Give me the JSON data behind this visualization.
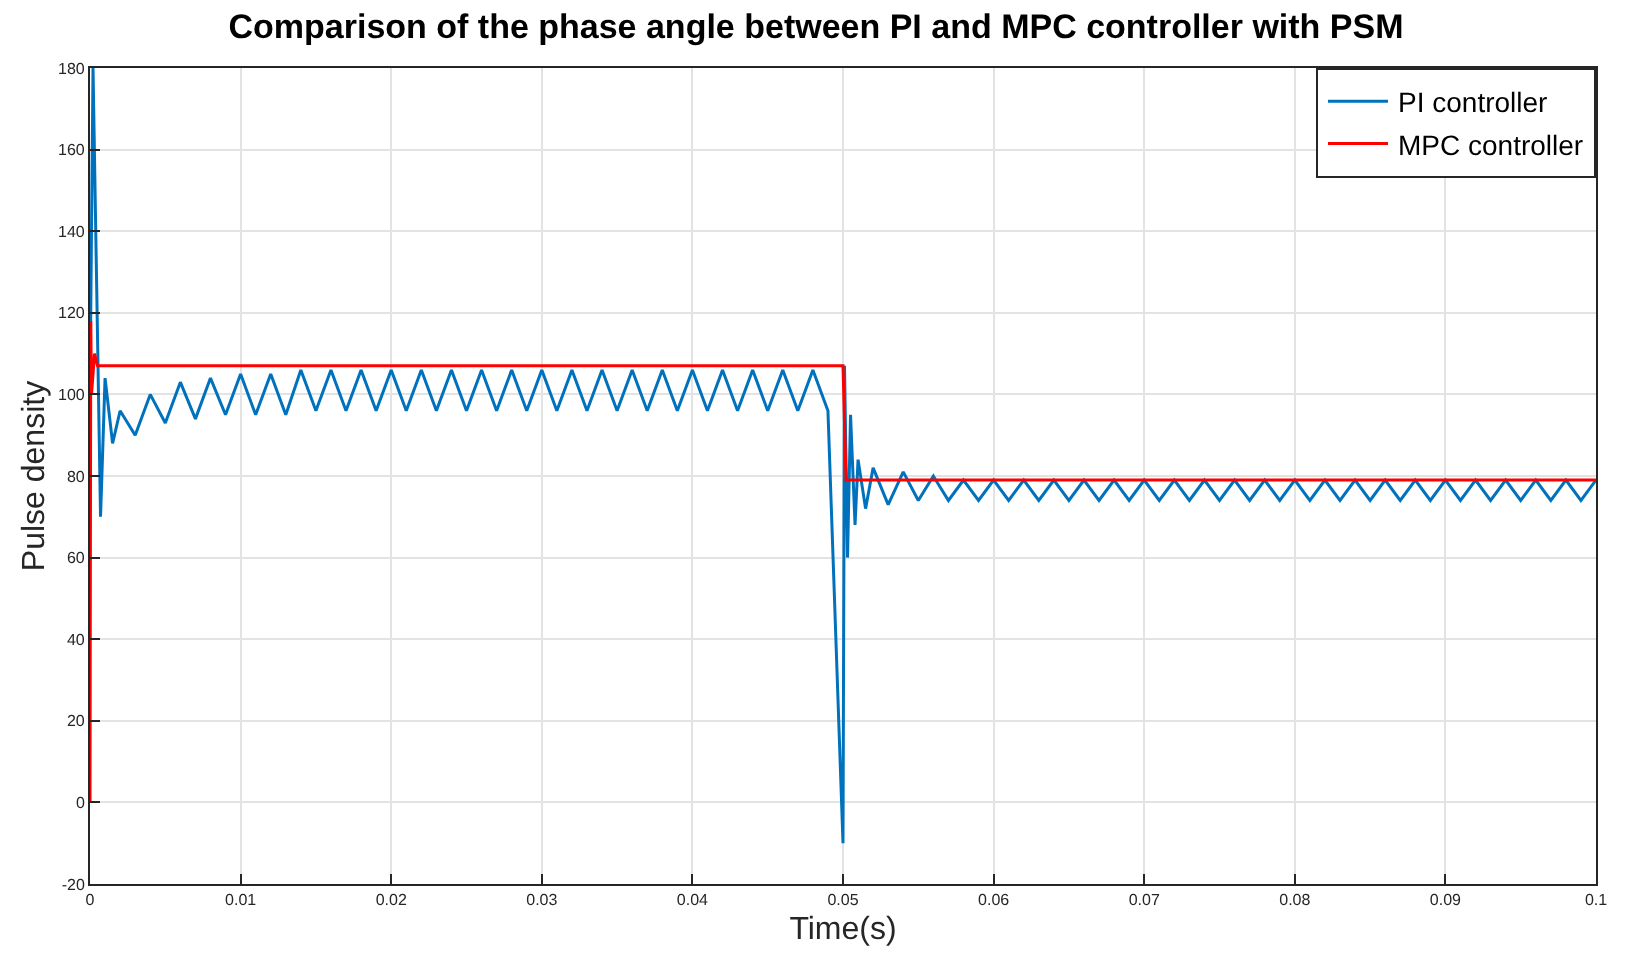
{
  "chart_data": {
    "type": "line",
    "title": "Comparison of the phase angle between PI and MPC controller with PSM",
    "xlabel": "Time(s)",
    "ylabel": "Pulse density",
    "series": [
      {
        "name": "PI controller",
        "color": "#0072bd",
        "x": [
          0,
          0.0002,
          0.0007,
          0.001,
          0.0015,
          0.002,
          0.003,
          0.004,
          0.005,
          0.006,
          0.007,
          0.008,
          0.009,
          0.01,
          0.011,
          0.012,
          0.013,
          0.014,
          0.015,
          0.016,
          0.017,
          0.018,
          0.019,
          0.02,
          0.021,
          0.022,
          0.023,
          0.024,
          0.025,
          0.026,
          0.027,
          0.028,
          0.029,
          0.03,
          0.031,
          0.032,
          0.033,
          0.034,
          0.035,
          0.036,
          0.037,
          0.038,
          0.039,
          0.04,
          0.041,
          0.042,
          0.043,
          0.044,
          0.045,
          0.046,
          0.047,
          0.048,
          0.049,
          0.05,
          0.0501,
          0.0503,
          0.0505,
          0.0508,
          0.051,
          0.0515,
          0.052,
          0.053,
          0.054,
          0.055,
          0.056,
          0.057,
          0.058,
          0.059,
          0.06,
          0.061,
          0.062,
          0.063,
          0.064,
          0.065,
          0.066,
          0.067,
          0.068,
          0.069,
          0.07,
          0.071,
          0.072,
          0.073,
          0.074,
          0.075,
          0.076,
          0.077,
          0.078,
          0.079,
          0.08,
          0.081,
          0.082,
          0.083,
          0.084,
          0.085,
          0.086,
          0.087,
          0.088,
          0.089,
          0.09,
          0.091,
          0.092,
          0.093,
          0.094,
          0.095,
          0.096,
          0.097,
          0.098,
          0.099,
          0.1
        ],
        "values": [
          100,
          180,
          70,
          104,
          88,
          96,
          90,
          100,
          93,
          103,
          94,
          104,
          95,
          105,
          95,
          105,
          95,
          106,
          96,
          106,
          96,
          106,
          96,
          106,
          96,
          106,
          96,
          106,
          96,
          106,
          96,
          106,
          96,
          106,
          96,
          106,
          96,
          106,
          96,
          106,
          96,
          106,
          96,
          106,
          96,
          106,
          96,
          106,
          96,
          106,
          96,
          106,
          96,
          -10,
          107,
          60,
          95,
          68,
          84,
          72,
          82,
          73,
          81,
          74,
          80,
          74,
          79,
          74,
          79,
          74,
          79,
          74,
          79,
          74,
          79,
          74,
          79,
          74,
          79,
          74,
          79,
          74,
          79,
          74,
          79,
          74,
          79,
          74,
          79,
          74,
          79,
          74,
          79,
          74,
          79,
          74,
          79,
          74,
          79,
          74,
          79,
          74,
          79,
          74,
          79,
          74,
          79,
          74,
          79
        ]
      },
      {
        "name": "MPC controller",
        "color": "#ff0000",
        "x": [
          0,
          5e-05,
          0.0001,
          0.0003,
          0.0005,
          0.0499,
          0.05,
          0.0502,
          0.1
        ],
        "values": [
          0,
          118,
          100,
          110,
          107,
          107,
          107,
          79,
          79
        ]
      }
    ],
    "xlim": [
      0,
      0.1
    ],
    "xticks": [
      0,
      0.01,
      0.02,
      0.03,
      0.04,
      0.05,
      0.06,
      0.07,
      0.08,
      0.09,
      0.1
    ],
    "ylim": [
      -20,
      180
    ],
    "yticks": [
      -20,
      0,
      20,
      40,
      60,
      80,
      100,
      120,
      140,
      160,
      180
    ],
    "grid": true,
    "legend": "top right",
    "line_style": "solid",
    "marker": "none"
  }
}
